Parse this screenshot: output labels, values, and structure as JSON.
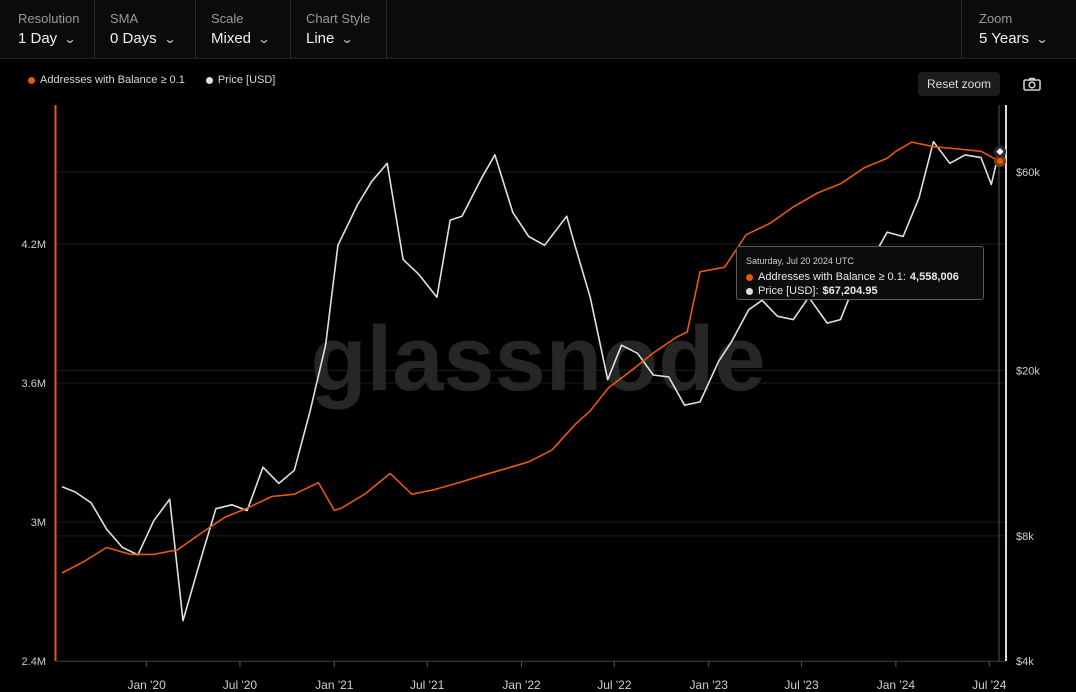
{
  "toolbar": {
    "resolution": {
      "label": "Resolution",
      "value": "1 Day"
    },
    "sma": {
      "label": "SMA",
      "value": "0 Days"
    },
    "scale": {
      "label": "Scale",
      "value": "Mixed"
    },
    "chart_style": {
      "label": "Chart Style",
      "value": "Line"
    },
    "zoom": {
      "label": "Zoom",
      "value": "5 Years"
    }
  },
  "legend": {
    "addresses": "Addresses with Balance ≥ 0.1",
    "price": "Price [USD]"
  },
  "buttons": {
    "reset_zoom": "Reset zoom"
  },
  "colors": {
    "addresses": "#e8590c",
    "price": "#e0e0e0",
    "background": "#000000"
  },
  "watermark": "glassnode",
  "tooltip": {
    "date": "Saturday, Jul 20 2024 UTC",
    "addresses_label": "Addresses with Balance ≥ 0.1:",
    "addresses_value": "4,558,006",
    "price_label": "Price [USD]:",
    "price_value": "$67,204.95"
  },
  "chart_data": {
    "type": "line",
    "title": "",
    "x_tick_labels": [
      "Jan '20",
      "Jul '20",
      "Jan '21",
      "Jul '21",
      "Jan '22",
      "Jul '22",
      "Jan '23",
      "Jul '23",
      "Jan '24",
      "Jul '24"
    ],
    "y_left": {
      "ticks": [
        "4.2M",
        "3.6M",
        "3M",
        "2.4M"
      ],
      "tick_values": [
        4200000,
        3600000,
        3000000,
        2400000
      ],
      "range": [
        2400000,
        4800000
      ],
      "scale": "linear"
    },
    "y_right": {
      "ticks": [
        "$60k",
        "$20k",
        "$8k",
        "$4k"
      ],
      "tick_values": [
        60000,
        20000,
        8000,
        4000
      ],
      "range": [
        4000,
        87000
      ],
      "scale": "log"
    },
    "series": [
      {
        "name": "Addresses with Balance ≥ 0.1",
        "axis": "left",
        "x": [
          "2019-07-20",
          "2019-09-01",
          "2019-10-15",
          "2019-12-01",
          "2020-01-15",
          "2020-03-01",
          "2020-04-15",
          "2020-06-01",
          "2020-07-15",
          "2020-09-01",
          "2020-10-15",
          "2020-12-01",
          "2021-01-01",
          "2021-01-15",
          "2021-03-01",
          "2021-04-20",
          "2021-06-01",
          "2021-07-15",
          "2021-09-01",
          "2021-10-15",
          "2021-12-01",
          "2022-01-15",
          "2022-03-01",
          "2022-04-15",
          "2022-05-15",
          "2022-06-20",
          "2022-08-01",
          "2022-09-15",
          "2022-11-01",
          "2022-11-20",
          "2022-12-15",
          "2023-02-01",
          "2023-03-15",
          "2023-05-01",
          "2023-06-15",
          "2023-08-01",
          "2023-09-15",
          "2023-11-01",
          "2023-12-15",
          "2024-01-01",
          "2024-02-01",
          "2024-03-15",
          "2024-05-01",
          "2024-06-15",
          "2024-07-20"
        ],
        "values": [
          2780000,
          2830000,
          2890000,
          2860000,
          2860000,
          2880000,
          2950000,
          3020000,
          3060000,
          3110000,
          3120000,
          3170000,
          3050000,
          3060000,
          3120000,
          3210000,
          3120000,
          3140000,
          3170000,
          3200000,
          3230000,
          3260000,
          3310000,
          3420000,
          3480000,
          3580000,
          3650000,
          3730000,
          3800000,
          3820000,
          4080000,
          4100000,
          4240000,
          4290000,
          4360000,
          4420000,
          4460000,
          4530000,
          4570000,
          4600000,
          4640000,
          4620000,
          4610000,
          4600000,
          4558006
        ]
      },
      {
        "name": "Price [USD]",
        "axis": "right",
        "x": [
          "2019-07-20",
          "2019-08-15",
          "2019-09-15",
          "2019-10-15",
          "2019-11-15",
          "2019-12-15",
          "2020-01-15",
          "2020-02-15",
          "2020-03-12",
          "2020-04-15",
          "2020-05-15",
          "2020-06-15",
          "2020-07-15",
          "2020-08-15",
          "2020-09-15",
          "2020-10-15",
          "2020-11-15",
          "2020-12-15",
          "2021-01-08",
          "2021-02-15",
          "2021-03-15",
          "2021-04-14",
          "2021-05-15",
          "2021-06-15",
          "2021-07-20",
          "2021-08-15",
          "2021-09-07",
          "2021-10-15",
          "2021-11-10",
          "2021-12-15",
          "2022-01-15",
          "2022-02-15",
          "2022-03-30",
          "2022-04-15",
          "2022-05-15",
          "2022-06-18",
          "2022-07-15",
          "2022-08-15",
          "2022-09-15",
          "2022-10-15",
          "2022-11-15",
          "2022-12-15",
          "2023-01-20",
          "2023-02-15",
          "2023-03-20",
          "2023-04-15",
          "2023-05-15",
          "2023-06-15",
          "2023-07-15",
          "2023-08-20",
          "2023-09-15",
          "2023-10-20",
          "2023-11-15",
          "2023-12-15",
          "2024-01-15",
          "2024-02-15",
          "2024-03-14",
          "2024-04-15",
          "2024-05-15",
          "2024-06-15",
          "2024-07-05",
          "2024-07-20"
        ],
        "values": [
          10500,
          10200,
          9600,
          8300,
          7500,
          7200,
          8700,
          9800,
          5000,
          7000,
          9300,
          9500,
          9200,
          11700,
          10700,
          11500,
          16000,
          23000,
          40000,
          50000,
          57000,
          63000,
          37000,
          34000,
          30000,
          46000,
          47000,
          58000,
          66000,
          48000,
          42000,
          40000,
          47000,
          40000,
          30000,
          19000,
          23000,
          22000,
          19500,
          19300,
          16500,
          16800,
          21000,
          23500,
          28000,
          29500,
          27000,
          26500,
          30000,
          26000,
          26500,
          34000,
          37000,
          43000,
          42000,
          52000,
          71000,
          63000,
          66000,
          65000,
          56000,
          67204.95
        ]
      }
    ]
  }
}
